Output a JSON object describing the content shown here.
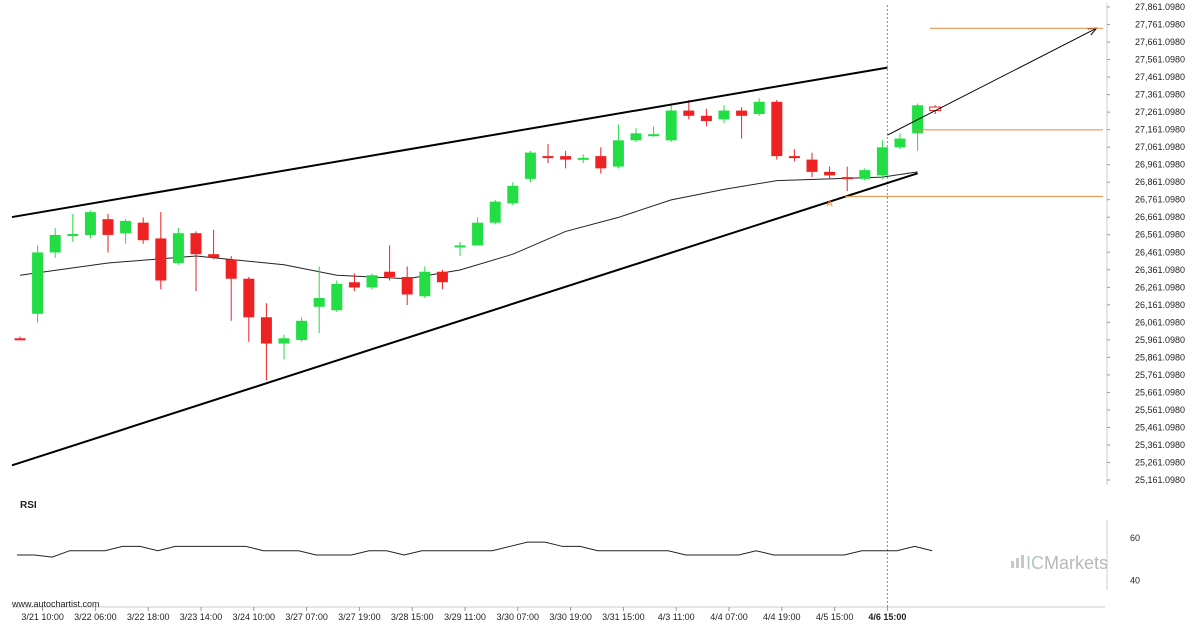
{
  "chart_data": {
    "type": "candlestick",
    "y_ticks": [
      "27,861.0980",
      "27,761.0980",
      "27,661.0980",
      "27,561.0980",
      "27,461.0980",
      "27,361.0980",
      "27,261.0980",
      "27,161.0980",
      "27,061.0980",
      "26,961.0980",
      "26,861.0980",
      "26,761.0980",
      "26,661.0980",
      "26,561.0980",
      "26,461.0980",
      "26,361.0980",
      "26,261.0980",
      "26,161.0980",
      "26,061.0980",
      "25,961.0980",
      "25,861.0980",
      "25,761.0980",
      "25,661.0980",
      "25,561.0980",
      "25,461.0980",
      "25,361.0980",
      "25,261.0980",
      "25,161.0980"
    ],
    "ylim": [
      25161.098,
      27861.098
    ],
    "x_ticks": [
      {
        "label": "3/21 10:00",
        "index": 1
      },
      {
        "label": "3/22 06:00",
        "index": 4
      },
      {
        "label": "3/22 18:00",
        "index": 7
      },
      {
        "label": "3/23 14:00",
        "index": 10
      },
      {
        "label": "3/24 10:00",
        "index": 13
      },
      {
        "label": "3/27 07:00",
        "index": 16
      },
      {
        "label": "3/27 19:00",
        "index": 19
      },
      {
        "label": "3/28 15:00",
        "index": 22
      },
      {
        "label": "3/29 11:00",
        "index": 25
      },
      {
        "label": "3/30 07:00",
        "index": 28
      },
      {
        "label": "3/30 19:00",
        "index": 31
      },
      {
        "label": "3/31 15:00",
        "index": 34
      },
      {
        "label": "4/3 11:00",
        "index": 37
      },
      {
        "label": "4/4 07:00",
        "index": 40
      },
      {
        "label": "4/4 19:00",
        "index": 43
      },
      {
        "label": "4/5 15:00",
        "index": 46
      },
      {
        "label": "4/6 15:00",
        "index": 49
      }
    ],
    "candles": [
      {
        "o": 25970,
        "h": 25980,
        "l": 25960,
        "c": 25965
      },
      {
        "o": 26110,
        "h": 26500,
        "l": 26060,
        "c": 26460
      },
      {
        "o": 26460,
        "h": 26600,
        "l": 26430,
        "c": 26560
      },
      {
        "o": 26560,
        "h": 26680,
        "l": 26520,
        "c": 26565
      },
      {
        "o": 26560,
        "h": 26700,
        "l": 26540,
        "c": 26690
      },
      {
        "o": 26650,
        "h": 26680,
        "l": 26460,
        "c": 26560
      },
      {
        "o": 26570,
        "h": 26650,
        "l": 26510,
        "c": 26640
      },
      {
        "o": 26630,
        "h": 26660,
        "l": 26510,
        "c": 26530
      },
      {
        "o": 26540,
        "h": 26690,
        "l": 26250,
        "c": 26300
      },
      {
        "o": 26400,
        "h": 26600,
        "l": 26390,
        "c": 26570
      },
      {
        "o": 26570,
        "h": 26580,
        "l": 26240,
        "c": 26450
      },
      {
        "o": 26450,
        "h": 26590,
        "l": 26420,
        "c": 26430
      },
      {
        "o": 26420,
        "h": 26440,
        "l": 26070,
        "c": 26310
      },
      {
        "o": 26310,
        "h": 26320,
        "l": 25950,
        "c": 26090
      },
      {
        "o": 26090,
        "h": 26170,
        "l": 25730,
        "c": 25940
      },
      {
        "o": 25940,
        "h": 25990,
        "l": 25850,
        "c": 25970
      },
      {
        "o": 25960,
        "h": 26090,
        "l": 25950,
        "c": 26070
      },
      {
        "o": 26150,
        "h": 26380,
        "l": 26000,
        "c": 26200
      },
      {
        "o": 26130,
        "h": 26300,
        "l": 26120,
        "c": 26280
      },
      {
        "o": 26290,
        "h": 26340,
        "l": 26240,
        "c": 26260
      },
      {
        "o": 26260,
        "h": 26340,
        "l": 26250,
        "c": 26330
      },
      {
        "o": 26350,
        "h": 26500,
        "l": 26300,
        "c": 26320
      },
      {
        "o": 26320,
        "h": 26380,
        "l": 26160,
        "c": 26220
      },
      {
        "o": 26210,
        "h": 26380,
        "l": 26200,
        "c": 26350
      },
      {
        "o": 26350,
        "h": 26360,
        "l": 26250,
        "c": 26290
      },
      {
        "o": 26490,
        "h": 26520,
        "l": 26440,
        "c": 26500
      },
      {
        "o": 26500,
        "h": 26660,
        "l": 26500,
        "c": 26630
      },
      {
        "o": 26630,
        "h": 26760,
        "l": 26620,
        "c": 26750
      },
      {
        "o": 26740,
        "h": 26860,
        "l": 26730,
        "c": 26840
      },
      {
        "o": 26880,
        "h": 27040,
        "l": 26860,
        "c": 27030
      },
      {
        "o": 27010,
        "h": 27080,
        "l": 26970,
        "c": 27000
      },
      {
        "o": 27010,
        "h": 27040,
        "l": 26940,
        "c": 26990
      },
      {
        "o": 26990,
        "h": 27020,
        "l": 26970,
        "c": 27000
      },
      {
        "o": 27010,
        "h": 27060,
        "l": 26910,
        "c": 26940
      },
      {
        "o": 26950,
        "h": 27190,
        "l": 26940,
        "c": 27100
      },
      {
        "o": 27100,
        "h": 27170,
        "l": 27090,
        "c": 27140
      },
      {
        "o": 27130,
        "h": 27180,
        "l": 27120,
        "c": 27135
      },
      {
        "o": 27100,
        "h": 27300,
        "l": 27090,
        "c": 27270
      },
      {
        "o": 27270,
        "h": 27330,
        "l": 27220,
        "c": 27240
      },
      {
        "o": 27240,
        "h": 27280,
        "l": 27180,
        "c": 27210
      },
      {
        "o": 27220,
        "h": 27300,
        "l": 27200,
        "c": 27270
      },
      {
        "o": 27270,
        "h": 27290,
        "l": 27110,
        "c": 27240
      },
      {
        "o": 27250,
        "h": 27340,
        "l": 27240,
        "c": 27320
      },
      {
        "o": 27320,
        "h": 27330,
        "l": 26990,
        "c": 27010
      },
      {
        "o": 27010,
        "h": 27050,
        "l": 26980,
        "c": 27000
      },
      {
        "o": 26990,
        "h": 27030,
        "l": 26890,
        "c": 26920
      },
      {
        "o": 26920,
        "h": 26950,
        "l": 26880,
        "c": 26900
      },
      {
        "o": 26890,
        "h": 26950,
        "l": 26810,
        "c": 26880
      },
      {
        "o": 26880,
        "h": 26940,
        "l": 26870,
        "c": 26930
      },
      {
        "o": 26900,
        "h": 27100,
        "l": 26880,
        "c": 27060
      },
      {
        "o": 27060,
        "h": 27140,
        "l": 27050,
        "c": 27110
      },
      {
        "o": 27140,
        "h": 27310,
        "l": 27040,
        "c": 27300
      }
    ],
    "forecast_candle": {
      "o": 27270,
      "h": 27300,
      "l": 27250,
      "c": 27290
    },
    "moving_average": [
      [
        0,
        26330
      ],
      [
        5,
        26400
      ],
      [
        10,
        26440
      ],
      [
        15,
        26390
      ],
      [
        18,
        26330
      ],
      [
        22,
        26310
      ],
      [
        25,
        26360
      ],
      [
        28,
        26450
      ],
      [
        31,
        26580
      ],
      [
        34,
        26660
      ],
      [
        37,
        26760
      ],
      [
        40,
        26820
      ],
      [
        43,
        26870
      ],
      [
        46,
        26880
      ],
      [
        49,
        26890
      ],
      [
        51,
        26920
      ]
    ],
    "trendline_upper": {
      "start": [
        0,
        26662
      ],
      "end": [
        49,
        27515
      ]
    },
    "trendline_lower": {
      "start": [
        0,
        25245
      ],
      "end": [
        51,
        26912
      ]
    },
    "projection_arrow": {
      "start": [
        49,
        27130
      ],
      "end": [
        61,
        27740
      ]
    },
    "levels": [
      {
        "value": 27740
      },
      {
        "value": 27160
      },
      {
        "value": 26780
      }
    ],
    "point_label": {
      "text": "A",
      "index": 46
    },
    "rsi": {
      "title": "RSI",
      "ticks": [
        "60",
        "40"
      ],
      "ylim": [
        38,
        66
      ],
      "values": [
        52,
        52,
        51,
        54,
        54,
        54,
        56,
        56,
        54,
        56,
        56,
        56,
        56,
        56,
        54,
        54,
        54,
        52,
        52,
        52,
        54,
        54,
        52,
        54,
        54,
        54,
        54,
        54,
        56,
        58,
        58,
        56,
        56,
        54,
        54,
        54,
        54,
        54,
        52,
        52,
        52,
        52,
        54,
        52,
        52,
        52,
        52,
        52,
        54,
        54,
        54,
        56,
        54
      ]
    }
  },
  "footer": {
    "site": "www.autochartist.com"
  },
  "watermark": {
    "brand_ic": "IC",
    "brand_markets": "Markets"
  },
  "colors": {
    "up": "#22dd44",
    "down": "#ee2222",
    "level": "#e8873a",
    "trend": "#000000"
  }
}
